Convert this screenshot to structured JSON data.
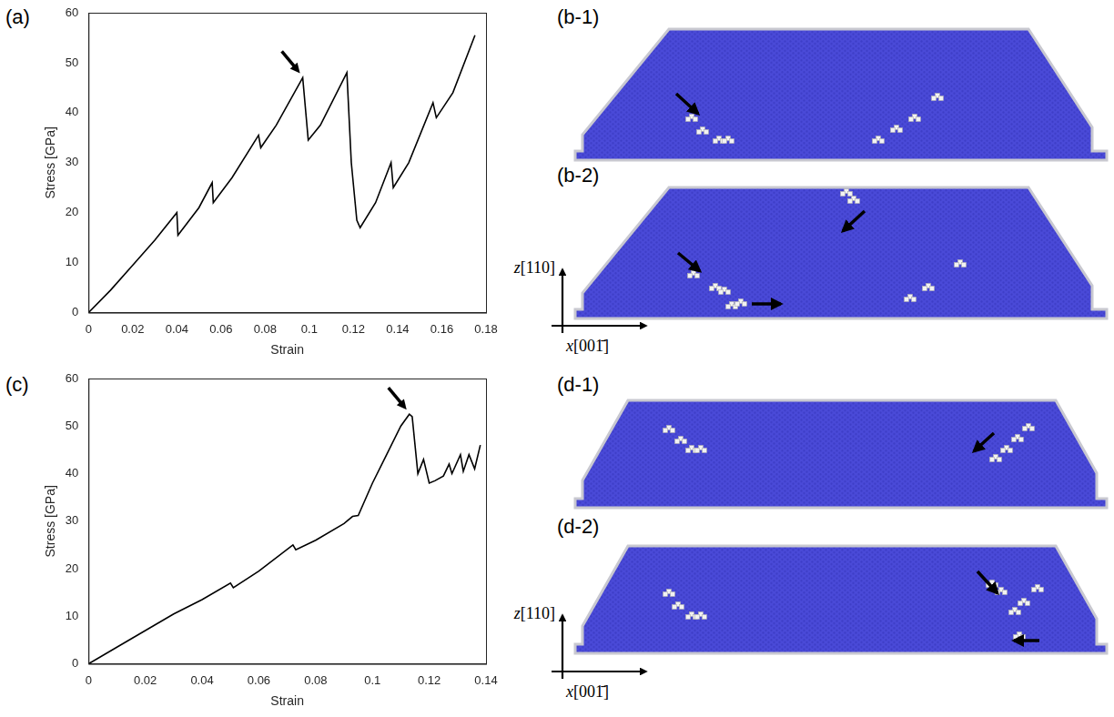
{
  "chart_data": [
    {
      "type": "line",
      "label": "(a)",
      "x_label": "Strain",
      "y_label": "Stress [GPa]",
      "color": "#000000",
      "x": [
        0,
        0.01,
        0.02,
        0.03,
        0.04,
        0.0405,
        0.05,
        0.056,
        0.0565,
        0.065,
        0.077,
        0.078,
        0.085,
        0.097,
        0.0995,
        0.105,
        0.117,
        0.119,
        0.1215,
        0.123,
        0.13,
        0.137,
        0.138,
        0.145,
        0.156,
        0.1575,
        0.165,
        0.175
      ],
      "values": [
        0,
        4.5,
        9.5,
        14.5,
        20,
        15.5,
        21,
        26,
        22,
        27,
        35.5,
        33,
        37.5,
        47,
        34.5,
        37.5,
        48,
        30,
        18.5,
        17,
        22,
        30,
        25,
        30,
        42,
        39,
        44,
        55.5
      ],
      "xlim": [
        0,
        0.18
      ],
      "xticks": [
        0,
        0.02,
        0.04,
        0.06,
        0.08,
        0.1,
        0.12,
        0.14,
        0.16,
        0.18
      ],
      "ylim": [
        0,
        60
      ],
      "yticks": [
        0,
        10,
        20,
        30,
        40,
        50,
        60
      ],
      "grid": false,
      "arrows": [
        {
          "x": 0.097,
          "y": 47
        }
      ]
    },
    {
      "type": "line",
      "label": "(c)",
      "x_label": "Strain",
      "y_label": "Stress [GPa]",
      "color": "#000000",
      "x": [
        0,
        0.01,
        0.02,
        0.03,
        0.04,
        0.05,
        0.051,
        0.06,
        0.072,
        0.073,
        0.08,
        0.09,
        0.093,
        0.095,
        0.1,
        0.105,
        0.11,
        0.113,
        0.114,
        0.116,
        0.118,
        0.12,
        0.122,
        0.125,
        0.127,
        0.128,
        0.131,
        0.132,
        0.134,
        0.136,
        0.138
      ],
      "values": [
        0,
        3.5,
        7,
        10.5,
        13.5,
        17,
        16,
        19.5,
        25,
        24,
        26,
        29.5,
        31,
        31.2,
        38,
        44,
        50,
        52.5,
        52,
        40,
        43,
        38,
        38.5,
        39.5,
        42,
        40,
        44,
        40.5,
        44,
        41,
        46
      ],
      "xlim": [
        0,
        0.14
      ],
      "xticks": [
        0,
        0.02,
        0.04,
        0.06,
        0.08,
        0.1,
        0.12,
        0.14
      ],
      "ylim": [
        0,
        60
      ],
      "yticks": [
        0,
        10,
        20,
        30,
        40,
        50,
        60
      ],
      "grid": false,
      "arrows": [
        {
          "x": 0.113,
          "y": 52.5
        }
      ]
    }
  ],
  "snapshots": [
    {
      "label": "(b-1)"
    },
    {
      "label": "(b-2)",
      "axes": {
        "z": "z[110]",
        "x": "x[001̄]"
      }
    },
    {
      "label": "(d-1)"
    },
    {
      "label": "(d-2)",
      "axes": {
        "z": "z[110]",
        "x": "x[001̄]"
      }
    }
  ]
}
